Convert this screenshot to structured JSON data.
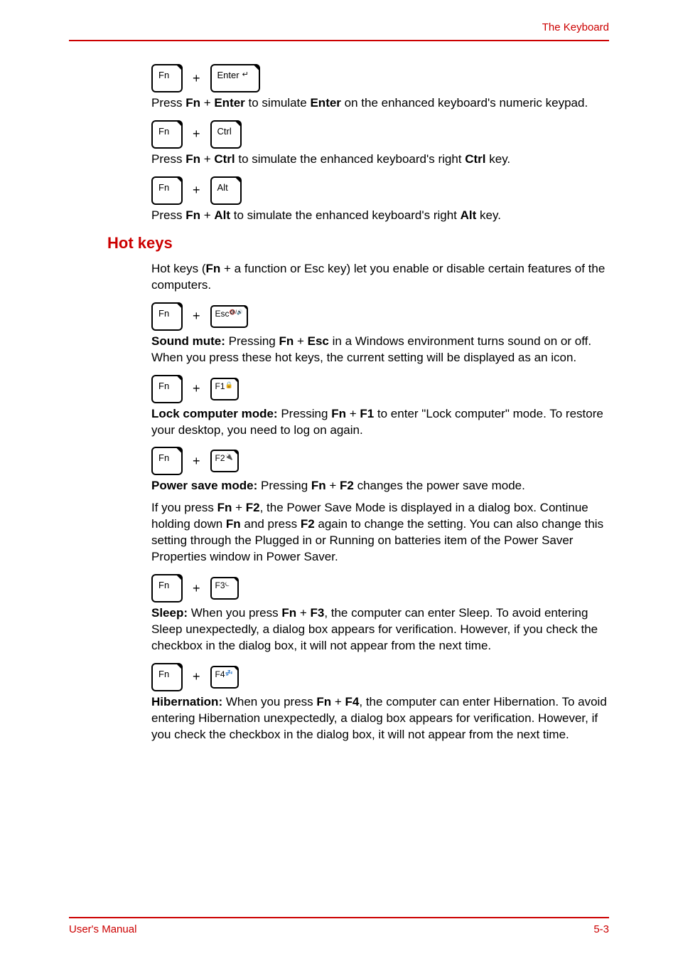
{
  "header": {
    "title": "The Keyboard"
  },
  "combos": [
    {
      "key1": "Fn",
      "key2": "Enter",
      "key2_symbol": "↵",
      "key2_wide": true,
      "desc_html": "Press <b>Fn</b> + <b>Enter</b> to simulate <b>Enter</b> on the enhanced keyboard's numeric keypad."
    },
    {
      "key1": "Fn",
      "key2": "Ctrl",
      "desc_html": "Press <b>Fn</b> + <b>Ctrl</b> to simulate the enhanced keyboard's right <b>Ctrl</b> key."
    },
    {
      "key1": "Fn",
      "key2": "Alt",
      "desc_html": "Press <b>Fn</b> + <b>Alt</b> to simulate the enhanced keyboard's right <b>Alt</b> key."
    }
  ],
  "hotkeys_heading": "Hot keys",
  "hotkeys_intro": "Hot keys (<b>Fn</b> + a function or Esc key) let you enable or disable certain features of the computers.",
  "hotkeys": [
    {
      "key1": "Fn",
      "key2": "Esc",
      "key2_sub": "🔇/🔊",
      "key2_small": true,
      "desc_html": "<b>Sound mute:</b> Pressing <b>Fn</b> + <b>Esc</b> in a Windows environment turns sound on or off. When you press these hot keys, the current setting will be displayed as an icon."
    },
    {
      "key1": "Fn",
      "key2": "F1",
      "key2_icon": "🔒",
      "key2_small": true,
      "desc_html": "<b>Lock computer mode:</b> Pressing <b>Fn</b> + <b>F1</b> to enter \"Lock computer\" mode. To restore your desktop, you need to log on again."
    },
    {
      "key1": "Fn",
      "key2": "F2",
      "key2_icon": "🔌",
      "key2_small": true,
      "desc_html": "<b>Power save mode:</b> Pressing <b>Fn</b> + <b>F2</b> changes the power save mode.",
      "extra_html": "If you press <b>Fn</b> + <b>F2</b>, the Power Save Mode is displayed in a dialog box. Continue holding down <b>Fn</b> and press <b>F2</b> again to change the setting. You can also change this setting through the Plugged in or Running on batteries item of the Power Saver Properties window in Power Saver."
    },
    {
      "key1": "Fn",
      "key2": "F3",
      "key2_icon": "⏾",
      "key2_small": true,
      "desc_html": "<b>Sleep:</b> When you press <b>Fn</b> + <b>F3</b>, the computer can enter Sleep. To avoid entering Sleep unexpectedly, a dialog box appears for verification. However, if you check the checkbox in the dialog box, it will not appear from the next time."
    },
    {
      "key1": "Fn",
      "key2": "F4",
      "key2_icon": "💤",
      "key2_small": true,
      "desc_html": "<b>Hibernation:</b> When you press <b>Fn</b> + <b>F4</b>, the computer can enter Hibernation. To avoid entering Hibernation unexpectedly, a dialog box appears for verification. However, if you check the checkbox in the dialog box, it will not appear from the next time."
    }
  ],
  "footer": {
    "left": "User's Manual",
    "right": "5-3"
  }
}
